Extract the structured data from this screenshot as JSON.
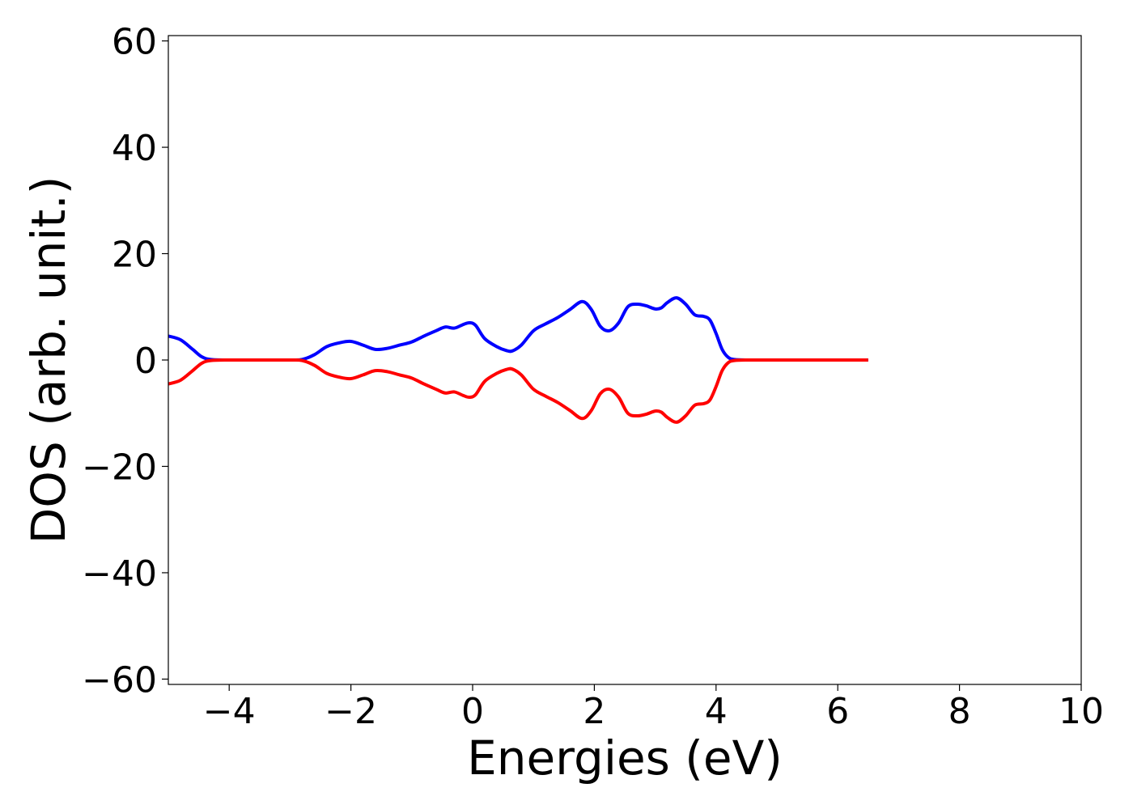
{
  "chart_data": {
    "type": "line",
    "title": "",
    "xlabel": "Energies (eV)",
    "ylabel": "DOS (arb. unit.)",
    "xlim": [
      -5,
      10
    ],
    "ylim": [
      -61,
      61
    ],
    "xticks": [
      -4,
      -2,
      0,
      2,
      4,
      6,
      8,
      10
    ],
    "yticks": [
      -60,
      -40,
      -20,
      0,
      20,
      40,
      60
    ],
    "xtick_labels": [
      "−4",
      "−2",
      "0",
      "2",
      "4",
      "6",
      "8",
      "10"
    ],
    "ytick_labels": [
      "−60",
      "−40",
      "−20",
      "0",
      "20",
      "40",
      "60"
    ],
    "grid": false,
    "legend": "none",
    "series": [
      {
        "color": "#0000ff",
        "x": [
          -5.0,
          -4.8,
          -4.6,
          -4.45,
          -4.3,
          -4.0,
          -3.5,
          -3.0,
          -2.8,
          -2.6,
          -2.4,
          -2.2,
          -2.0,
          -1.8,
          -1.6,
          -1.4,
          -1.2,
          -1.0,
          -0.8,
          -0.6,
          -0.45,
          -0.3,
          -0.15,
          -0.05,
          0.05,
          0.2,
          0.4,
          0.55,
          0.65,
          0.8,
          1.0,
          1.2,
          1.4,
          1.6,
          1.8,
          1.95,
          2.1,
          2.25,
          2.4,
          2.55,
          2.7,
          2.85,
          3.0,
          3.1,
          3.2,
          3.35,
          3.5,
          3.65,
          3.8,
          3.9,
          4.0,
          4.1,
          4.2,
          4.3,
          4.5,
          5.0,
          6.0,
          6.5
        ],
        "y": [
          4.5,
          3.8,
          2.0,
          0.6,
          0.1,
          0.0,
          0.0,
          0.0,
          0.1,
          1.0,
          2.5,
          3.2,
          3.5,
          2.8,
          2.0,
          2.2,
          2.8,
          3.4,
          4.5,
          5.5,
          6.2,
          6.0,
          6.7,
          7.0,
          6.5,
          4.0,
          2.5,
          1.8,
          1.7,
          2.8,
          5.5,
          6.8,
          8.0,
          9.5,
          11.0,
          9.5,
          6.3,
          5.5,
          7.0,
          10.0,
          10.5,
          10.2,
          9.6,
          9.8,
          10.8,
          11.7,
          10.5,
          8.5,
          8.2,
          7.5,
          5.0,
          2.0,
          0.5,
          0.1,
          0.0,
          0.0,
          0.0,
          0.0
        ]
      },
      {
        "color": "#ff0000",
        "x": [
          -5.0,
          -4.8,
          -4.6,
          -4.45,
          -4.3,
          -4.0,
          -3.5,
          -3.0,
          -2.8,
          -2.6,
          -2.4,
          -2.2,
          -2.0,
          -1.8,
          -1.6,
          -1.4,
          -1.2,
          -1.0,
          -0.8,
          -0.6,
          -0.45,
          -0.3,
          -0.15,
          -0.05,
          0.05,
          0.2,
          0.4,
          0.55,
          0.65,
          0.8,
          1.0,
          1.2,
          1.4,
          1.6,
          1.8,
          1.95,
          2.1,
          2.25,
          2.4,
          2.55,
          2.7,
          2.85,
          3.0,
          3.1,
          3.2,
          3.35,
          3.5,
          3.65,
          3.8,
          3.9,
          4.0,
          4.1,
          4.2,
          4.3,
          4.5,
          5.0,
          6.0,
          6.5
        ],
        "y": [
          -4.5,
          -3.8,
          -2.0,
          -0.6,
          -0.1,
          0.0,
          0.0,
          0.0,
          -0.1,
          -1.0,
          -2.5,
          -3.2,
          -3.5,
          -2.8,
          -2.0,
          -2.2,
          -2.8,
          -3.4,
          -4.5,
          -5.5,
          -6.2,
          -6.0,
          -6.7,
          -7.0,
          -6.5,
          -4.0,
          -2.5,
          -1.8,
          -1.7,
          -2.8,
          -5.5,
          -6.8,
          -8.0,
          -9.5,
          -11.0,
          -9.5,
          -6.3,
          -5.5,
          -7.0,
          -10.0,
          -10.5,
          -10.2,
          -9.6,
          -9.8,
          -10.8,
          -11.7,
          -10.5,
          -8.5,
          -8.2,
          -7.5,
          -5.0,
          -2.0,
          -0.5,
          -0.1,
          0.0,
          0.0,
          0.0,
          0.0
        ]
      }
    ]
  }
}
